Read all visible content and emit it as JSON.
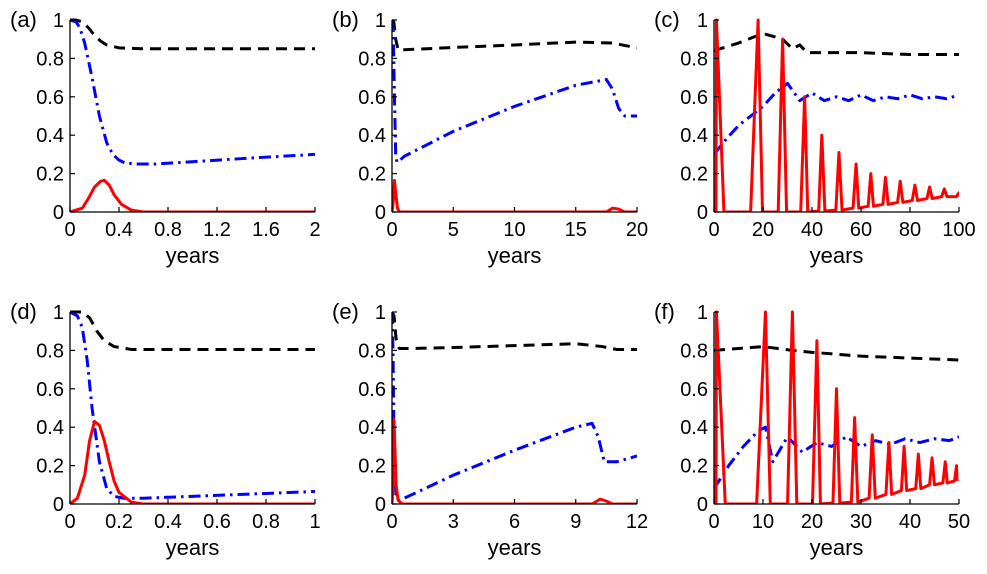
{
  "chart_data": [
    {
      "type": "line",
      "panel_label": "(a)",
      "xlabel": "years",
      "xlim": [
        0,
        2
      ],
      "ylim": [
        0,
        1
      ],
      "xticks": [
        "0",
        "0.4",
        "0.8",
        "1.2",
        "1.6",
        "2"
      ],
      "yticks": [
        "0",
        "0.2",
        "0.4",
        "0.6",
        "0.8",
        "1"
      ],
      "series": [
        {
          "style": "dashed",
          "color": "#000000",
          "x": [
            0,
            0.05,
            0.1,
            0.15,
            0.2,
            0.25,
            0.3,
            0.4,
            0.6,
            1.0,
            1.5,
            2.0
          ],
          "y": [
            1,
            1,
            0.99,
            0.96,
            0.92,
            0.89,
            0.87,
            0.855,
            0.85,
            0.85,
            0.85,
            0.85
          ]
        },
        {
          "style": "dashdot",
          "color": "#0000ff",
          "x": [
            0,
            0.05,
            0.08,
            0.12,
            0.18,
            0.24,
            0.3,
            0.35,
            0.4,
            0.45,
            0.55,
            0.7,
            1.0,
            1.5,
            2.0
          ],
          "y": [
            1,
            0.99,
            0.96,
            0.88,
            0.7,
            0.5,
            0.36,
            0.3,
            0.27,
            0.255,
            0.25,
            0.25,
            0.262,
            0.282,
            0.3
          ]
        },
        {
          "style": "solid",
          "color": "#ff0000",
          "x": [
            0,
            0.1,
            0.15,
            0.2,
            0.25,
            0.28,
            0.32,
            0.36,
            0.42,
            0.5,
            0.6,
            0.8,
            2.0
          ],
          "y": [
            0,
            0.02,
            0.07,
            0.13,
            0.16,
            0.165,
            0.14,
            0.09,
            0.04,
            0.01,
            0.0,
            0.0,
            0.0
          ]
        }
      ]
    },
    {
      "type": "line",
      "panel_label": "(b)",
      "xlabel": "years",
      "xlim": [
        0,
        20
      ],
      "ylim": [
        0,
        1
      ],
      "xticks": [
        "0",
        "5",
        "10",
        "15",
        "20"
      ],
      "yticks": [
        "0",
        "0.2",
        "0.4",
        "0.6",
        "0.8",
        "1"
      ],
      "series": [
        {
          "style": "dashed",
          "color": "#000000",
          "x": [
            0,
            0.15,
            0.3,
            0.5,
            1,
            5,
            10,
            15,
            18,
            20
          ],
          "y": [
            1,
            0.99,
            0.9,
            0.845,
            0.845,
            0.857,
            0.87,
            0.885,
            0.88,
            0.855
          ]
        },
        {
          "style": "dashdot",
          "color": "#0000ff",
          "x": [
            0,
            0.1,
            0.2,
            0.3,
            0.4,
            0.5,
            1,
            5,
            10,
            15,
            17.5,
            18,
            18.5,
            19,
            20
          ],
          "y": [
            1,
            0.95,
            0.6,
            0.3,
            0.26,
            0.26,
            0.29,
            0.42,
            0.55,
            0.66,
            0.69,
            0.64,
            0.54,
            0.5,
            0.5
          ]
        },
        {
          "style": "solid",
          "color": "#ff0000",
          "x": [
            0,
            0.1,
            0.2,
            0.3,
            0.45,
            0.6,
            1,
            17.5,
            18,
            18.5,
            19,
            20
          ],
          "y": [
            0,
            0.05,
            0.165,
            0.1,
            0.02,
            0,
            0,
            0,
            0.02,
            0.015,
            0,
            0
          ]
        }
      ]
    },
    {
      "type": "line",
      "panel_label": "(c)",
      "xlabel": "years",
      "xlim": [
        0,
        100
      ],
      "ylim": [
        0,
        1
      ],
      "xticks": [
        "0",
        "20",
        "40",
        "60",
        "80",
        "100"
      ],
      "yticks": [
        "0",
        "0.2",
        "0.4",
        "0.6",
        "0.8",
        "1"
      ],
      "series": [
        {
          "style": "dashed",
          "color": "#000000",
          "x": [
            0,
            10,
            20,
            28,
            32,
            35,
            38,
            45,
            60,
            80,
            100
          ],
          "y": [
            0.84,
            0.88,
            0.93,
            0.9,
            0.85,
            0.87,
            0.83,
            0.83,
            0.83,
            0.82,
            0.82
          ]
        },
        {
          "style": "dashdot",
          "color": "#0000ff",
          "x": [
            0,
            5,
            10,
            15,
            20,
            25,
            30,
            35,
            40,
            45,
            50,
            55,
            60,
            65,
            70,
            75,
            80,
            85,
            90,
            95,
            100
          ],
          "y": [
            0.3,
            0.38,
            0.45,
            0.5,
            0.55,
            0.62,
            0.67,
            0.58,
            0.62,
            0.58,
            0.6,
            0.58,
            0.61,
            0.58,
            0.6,
            0.59,
            0.61,
            0.59,
            0.6,
            0.59,
            0.61
          ]
        },
        {
          "style": "solid",
          "color": "#ff0000",
          "kind": "spikes",
          "peaks_x": [
            1,
            18,
            28,
            37,
            44,
            51,
            58,
            64,
            70,
            76,
            82,
            88,
            94,
            100
          ],
          "peaks_y": [
            1,
            1,
            0.9,
            0.6,
            0.4,
            0.31,
            0.25,
            0.2,
            0.18,
            0.16,
            0.14,
            0.13,
            0.12,
            0.1
          ],
          "troughs_y": [
            0,
            0,
            0,
            0,
            0.005,
            0.01,
            0.02,
            0.03,
            0.04,
            0.05,
            0.06,
            0.07,
            0.08,
            0.08
          ]
        }
      ]
    },
    {
      "type": "line",
      "panel_label": "(d)",
      "xlabel": "years",
      "xlim": [
        0,
        1
      ],
      "ylim": [
        0,
        1
      ],
      "xticks": [
        "0",
        "0.2",
        "0.4",
        "0.6",
        "0.8",
        "1"
      ],
      "yticks": [
        "0",
        "0.2",
        "0.4",
        "0.6",
        "0.8",
        "1"
      ],
      "series": [
        {
          "style": "dashed",
          "color": "#000000",
          "x": [
            0,
            0.05,
            0.08,
            0.11,
            0.14,
            0.18,
            0.25,
            0.4,
            0.7,
            1.0
          ],
          "y": [
            1,
            1,
            0.97,
            0.9,
            0.85,
            0.82,
            0.805,
            0.805,
            0.805,
            0.805
          ]
        },
        {
          "style": "dashdot",
          "color": "#0000ff",
          "x": [
            0,
            0.03,
            0.05,
            0.07,
            0.09,
            0.12,
            0.15,
            0.18,
            0.22,
            0.3,
            0.5,
            0.8,
            1.0
          ],
          "y": [
            1,
            0.98,
            0.92,
            0.75,
            0.5,
            0.22,
            0.08,
            0.04,
            0.03,
            0.03,
            0.04,
            0.055,
            0.065
          ]
        },
        {
          "style": "solid",
          "color": "#ff0000",
          "x": [
            0,
            0.03,
            0.06,
            0.08,
            0.1,
            0.12,
            0.14,
            0.16,
            0.18,
            0.2,
            0.25,
            0.3,
            0.4,
            1.0
          ],
          "y": [
            0,
            0.03,
            0.15,
            0.33,
            0.43,
            0.41,
            0.33,
            0.22,
            0.12,
            0.06,
            0.01,
            0,
            0,
            0
          ]
        }
      ]
    },
    {
      "type": "line",
      "panel_label": "(e)",
      "xlabel": "years",
      "xlim": [
        0,
        12
      ],
      "ylim": [
        0,
        1
      ],
      "xticks": [
        "0",
        "3",
        "6",
        "9",
        "12"
      ],
      "yticks": [
        "0",
        "0.2",
        "0.4",
        "0.6",
        "0.8",
        "1"
      ],
      "series": [
        {
          "style": "dashed",
          "color": "#000000",
          "x": [
            0,
            0.1,
            0.2,
            0.35,
            1,
            3,
            6,
            9,
            10.3,
            11,
            12
          ],
          "y": [
            1,
            0.98,
            0.86,
            0.81,
            0.81,
            0.815,
            0.825,
            0.835,
            0.82,
            0.805,
            0.805
          ]
        },
        {
          "style": "dashdot",
          "color": "#0000ff",
          "x": [
            0,
            0.05,
            0.1,
            0.2,
            0.3,
            0.6,
            3,
            6,
            9,
            9.8,
            10.1,
            10.4,
            11,
            12
          ],
          "y": [
            1,
            0.8,
            0.3,
            0.03,
            0.02,
            0.03,
            0.15,
            0.28,
            0.4,
            0.42,
            0.35,
            0.22,
            0.22,
            0.25
          ]
        },
        {
          "style": "solid",
          "color": "#ff0000",
          "x": [
            0,
            0.05,
            0.1,
            0.2,
            0.3,
            0.5,
            9.8,
            10.2,
            10.5,
            10.8,
            12
          ],
          "y": [
            0,
            0.1,
            0.44,
            0.1,
            0.02,
            0,
            0,
            0.025,
            0.015,
            0,
            0
          ]
        }
      ]
    },
    {
      "type": "line",
      "panel_label": "(f)",
      "xlabel": "years",
      "xlim": [
        0,
        50
      ],
      "ylim": [
        0,
        1
      ],
      "xticks": [
        "0",
        "10",
        "20",
        "30",
        "40",
        "50"
      ],
      "yticks": [
        "0",
        "0.2",
        "0.4",
        "0.6",
        "0.8",
        "1"
      ],
      "series": [
        {
          "style": "dashed",
          "color": "#000000",
          "x": [
            0,
            10,
            16,
            20,
            25,
            30,
            40,
            50
          ],
          "y": [
            0.8,
            0.82,
            0.8,
            0.79,
            0.78,
            0.77,
            0.76,
            0.75
          ]
        },
        {
          "style": "dashdot",
          "color": "#0000ff",
          "x": [
            0,
            3,
            6,
            9,
            10.5,
            12,
            15,
            18,
            21,
            24,
            27,
            30,
            33,
            36,
            39,
            42,
            45,
            48,
            50
          ],
          "y": [
            0.08,
            0.2,
            0.3,
            0.38,
            0.4,
            0.22,
            0.35,
            0.27,
            0.32,
            0.3,
            0.35,
            0.3,
            0.33,
            0.31,
            0.34,
            0.32,
            0.34,
            0.33,
            0.35
          ]
        },
        {
          "style": "solid",
          "color": "#ff0000",
          "kind": "spikes",
          "peaks_x": [
            0.5,
            10.5,
            16,
            21,
            25,
            28.7,
            32.3,
            35.7,
            38.8,
            41.7,
            44.5,
            47.2,
            49.5
          ],
          "peaks_y": [
            1,
            1,
            1,
            0.85,
            0.6,
            0.45,
            0.36,
            0.32,
            0.3,
            0.26,
            0.24,
            0.22,
            0.2
          ],
          "troughs_y": [
            0,
            0,
            0,
            0,
            0.005,
            0.01,
            0.03,
            0.05,
            0.07,
            0.08,
            0.1,
            0.11,
            0.12
          ]
        }
      ]
    }
  ]
}
